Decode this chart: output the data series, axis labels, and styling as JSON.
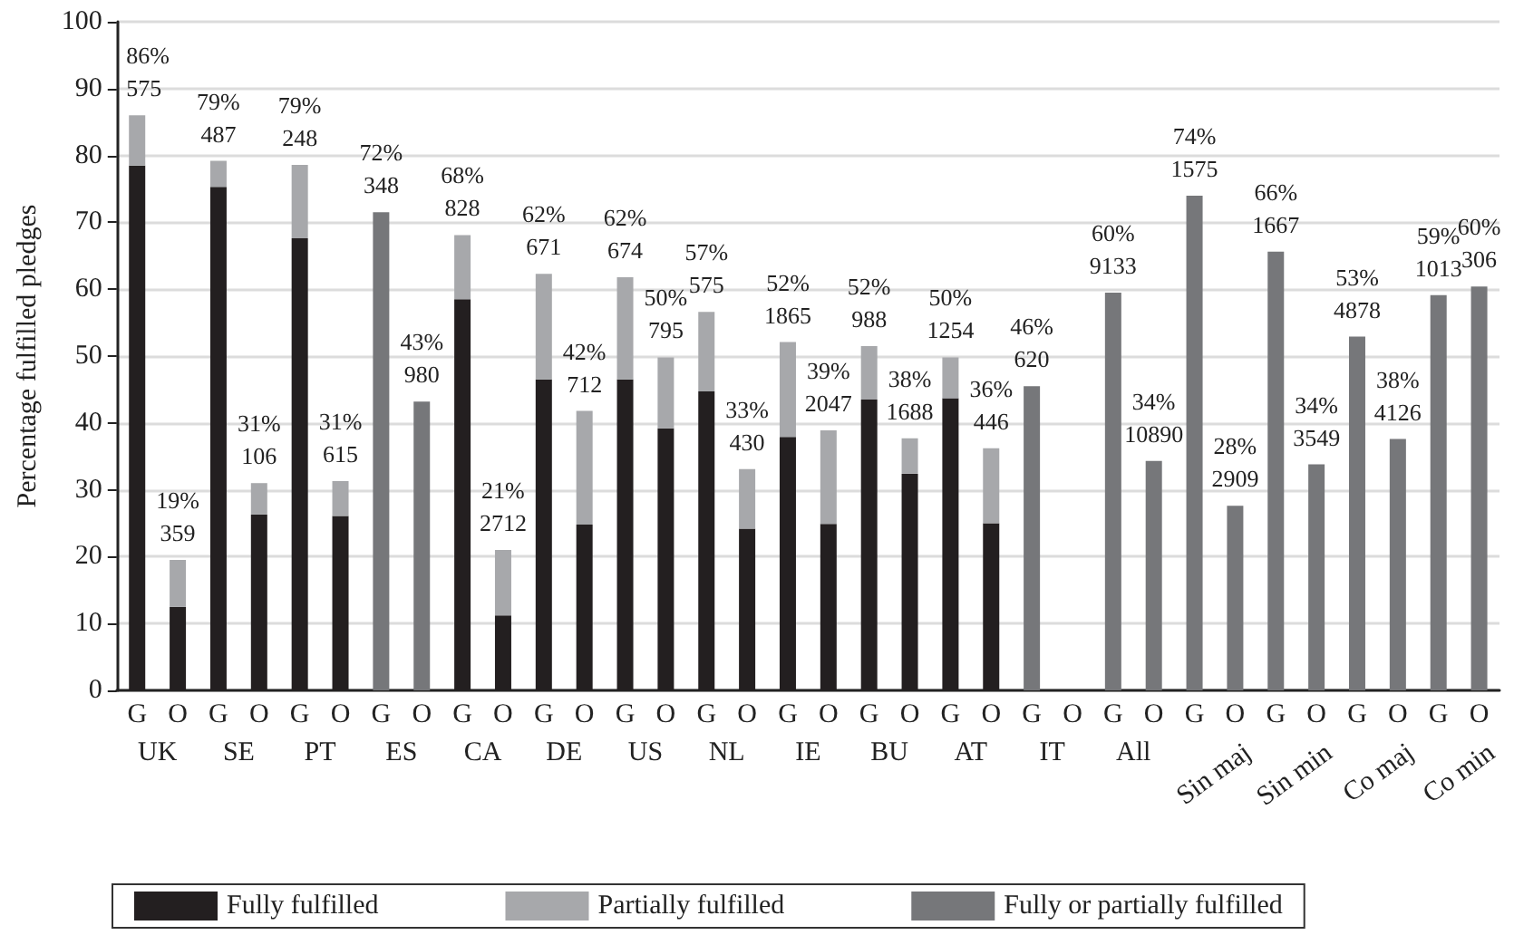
{
  "chart_data": {
    "type": "bar",
    "stacked": true,
    "ylabel": "Percentage fulfilled pledges",
    "categories": [
      "G",
      "O",
      "G",
      "O",
      "G",
      "O",
      "G",
      "O",
      "G",
      "O",
      "G",
      "O",
      "G",
      "O",
      "G",
      "O",
      "G",
      "O",
      "G",
      "O",
      "G",
      "O",
      "G",
      "O",
      "G",
      "O",
      "G",
      "O",
      "G",
      "O",
      "G",
      "O",
      "G",
      "O"
    ],
    "annotations": [
      "UK",
      "SE",
      "PT",
      "ES",
      "CA",
      "DE",
      "US",
      "NL",
      "IE",
      "BU",
      "AT",
      "IT",
      "All",
      "Sin maj",
      "Sin min",
      "Co maj",
      "Co min"
    ],
    "series": [
      {
        "name": "Fully fulfilled",
        "color": "#231f20",
        "values": [
          78.5,
          12.5,
          75.3,
          26.3,
          67.6,
          26.1,
          null,
          null,
          58.5,
          11.2,
          46.5,
          24.8,
          46.5,
          39.2,
          44.7,
          24.2,
          37.9,
          24.9,
          43.5,
          32.4,
          43.7,
          25.0,
          null,
          null,
          null,
          null,
          null,
          null,
          null,
          null,
          null,
          null,
          null,
          null
        ]
      },
      {
        "name": "Partially fulfilled",
        "color": "#a7a8ab",
        "values": [
          7.5,
          7,
          3.9,
          4.7,
          11,
          5.2,
          null,
          null,
          9.6,
          9.8,
          15.8,
          17,
          15.3,
          10.6,
          11.9,
          8.9,
          14.2,
          14,
          8,
          5.3,
          6.1,
          11.2,
          null,
          null,
          null,
          null,
          null,
          null,
          null,
          null,
          null,
          null,
          null,
          null
        ]
      },
      {
        "name": "Fully or partially fulfilled",
        "color": "#76777a",
        "values": [
          null,
          null,
          null,
          null,
          null,
          null,
          71.5,
          43.2,
          null,
          null,
          null,
          null,
          null,
          null,
          null,
          null,
          null,
          null,
          null,
          null,
          null,
          null,
          45.5,
          null,
          59.5,
          34.3,
          74,
          27.6,
          65.6,
          33.8,
          52.9,
          37.6,
          59.1,
          60.4
        ]
      }
    ],
    "totals": [
      "86%\n575",
      "19%\n359",
      "79%\n487",
      "31%\n106",
      "79%\n248",
      "31%\n615",
      "72%\n348",
      "43%\n980",
      "68%\n828",
      "21%\n2712",
      "62%\n671",
      "42%\n712",
      "62%\n674",
      "50%\n795",
      "57%\n575",
      "33%\n430",
      "52%\n1865",
      "39%\n2047",
      "52%\n988",
      "38%\n1688",
      "50%\n1254",
      "36%\n446",
      "46%\n620",
      null,
      "60%\n9133",
      "34%\n10890",
      "74%\n1575",
      "28%\n2909",
      "66%\n1667",
      "34%\n3549",
      "53%\n4878",
      "38%\n4126",
      "59%\n1013",
      "60%\n306"
    ],
    "ylim": [
      0,
      100
    ],
    "yticks": [
      0,
      10,
      20,
      30,
      40,
      50,
      60,
      70,
      80,
      90,
      100
    ],
    "grid": "y",
    "legend": "bottom"
  }
}
